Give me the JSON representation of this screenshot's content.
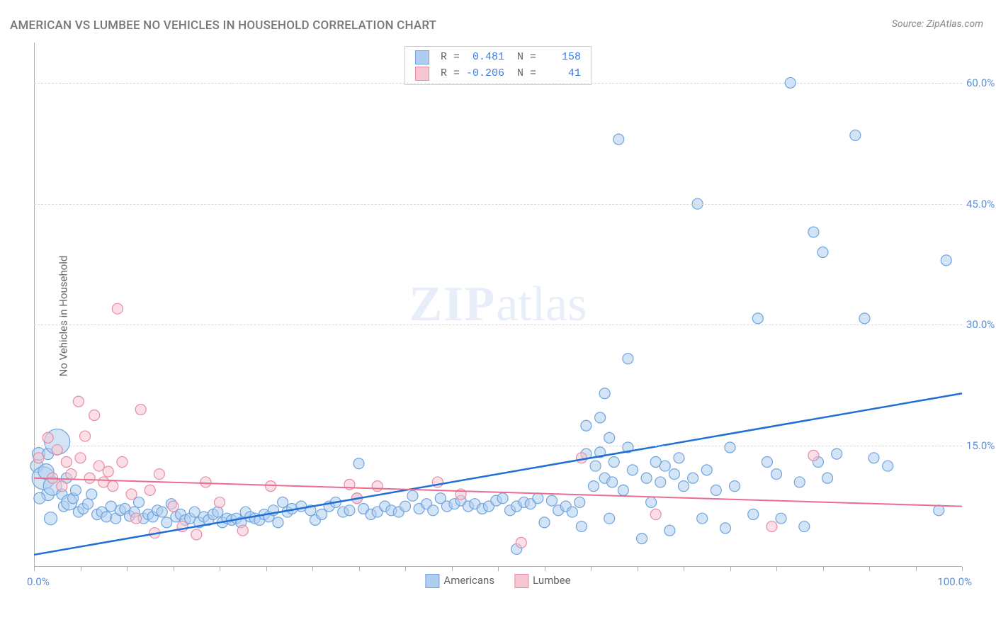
{
  "title": "AMERICAN VS LUMBEE NO VEHICLES IN HOUSEHOLD CORRELATION CHART",
  "source_label": "Source: ZipAtlas.com",
  "y_axis_label": "No Vehicles in Household",
  "watermark": {
    "bold": "ZIP",
    "rest": "atlas"
  },
  "chart": {
    "type": "scatter-with-regression",
    "xlim": [
      0,
      100
    ],
    "ylim": [
      0,
      65
    ],
    "x_tick_min": "0.0%",
    "x_tick_max": "100.0%",
    "x_minor_ticks": [
      0,
      5,
      10,
      15,
      20,
      25,
      30,
      35,
      40,
      45,
      50,
      55,
      60,
      65,
      70,
      75,
      80,
      85,
      90,
      95,
      100
    ],
    "y_gridlines": [
      15,
      30,
      45,
      60
    ],
    "y_tick_labels": [
      "15.0%",
      "30.0%",
      "45.0%",
      "60.0%"
    ],
    "background_color": "#ffffff",
    "grid_color": "#d8d8d8",
    "axis_color": "#b0b0b0",
    "tick_label_color": "#5b8fd6",
    "series": [
      {
        "name": "Americans",
        "legend_label": "Americans",
        "fill": "#aecdf0",
        "stroke": "#6fa3dd",
        "line_color": "#1f6fd6",
        "line_width": 2.5,
        "R": "0.481",
        "N": "158",
        "regression": {
          "x1": 0,
          "y1": 1.5,
          "x2": 100,
          "y2": 21.5
        },
        "default_r": 7.5,
        "points": [
          {
            "x": 0.3,
            "y": 12.5,
            "r": 9
          },
          {
            "x": 0.5,
            "y": 14.0,
            "r": 9
          },
          {
            "x": 1.0,
            "y": 11.0,
            "r": 16
          },
          {
            "x": 1.3,
            "y": 11.8,
            "r": 11
          },
          {
            "x": 1.5,
            "y": 9.0,
            "r": 9
          },
          {
            "x": 1.8,
            "y": 6.0,
            "r": 9
          },
          {
            "x": 0.6,
            "y": 8.5,
            "r": 8
          },
          {
            "x": 1.5,
            "y": 14.0,
            "r": 8
          },
          {
            "x": 2.0,
            "y": 10.0,
            "r": 13
          },
          {
            "x": 2.5,
            "y": 15.5,
            "r": 18
          },
          {
            "x": 3.0,
            "y": 9.0
          },
          {
            "x": 3.2,
            "y": 7.5
          },
          {
            "x": 3.5,
            "y": 11.0
          },
          {
            "x": 3.8,
            "y": 8.0,
            "r": 11
          },
          {
            "x": 4.2,
            "y": 8.5
          },
          {
            "x": 4.5,
            "y": 9.5
          },
          {
            "x": 4.8,
            "y": 6.8
          },
          {
            "x": 5.3,
            "y": 7.2
          },
          {
            "x": 5.8,
            "y": 7.8
          },
          {
            "x": 6.2,
            "y": 9.0
          },
          {
            "x": 6.8,
            "y": 6.5
          },
          {
            "x": 7.3,
            "y": 6.8
          },
          {
            "x": 7.8,
            "y": 6.2
          },
          {
            "x": 8.3,
            "y": 7.5
          },
          {
            "x": 8.8,
            "y": 6.0
          },
          {
            "x": 9.3,
            "y": 7.0
          },
          {
            "x": 9.8,
            "y": 7.2
          },
          {
            "x": 10.3,
            "y": 6.3
          },
          {
            "x": 10.8,
            "y": 6.8
          },
          {
            "x": 11.3,
            "y": 8.0
          },
          {
            "x": 11.8,
            "y": 6.0
          },
          {
            "x": 12.3,
            "y": 6.5
          },
          {
            "x": 12.8,
            "y": 6.2
          },
          {
            "x": 13.3,
            "y": 7.0
          },
          {
            "x": 13.8,
            "y": 6.8
          },
          {
            "x": 14.3,
            "y": 5.5
          },
          {
            "x": 14.8,
            "y": 7.8
          },
          {
            "x": 15.3,
            "y": 6.2
          },
          {
            "x": 15.8,
            "y": 6.5
          },
          {
            "x": 16.3,
            "y": 5.8
          },
          {
            "x": 16.8,
            "y": 6.0
          },
          {
            "x": 17.3,
            "y": 6.8
          },
          {
            "x": 17.8,
            "y": 5.5
          },
          {
            "x": 18.3,
            "y": 6.2
          },
          {
            "x": 18.8,
            "y": 5.8
          },
          {
            "x": 19.3,
            "y": 6.5
          },
          {
            "x": 19.8,
            "y": 6.8
          },
          {
            "x": 20.3,
            "y": 5.5
          },
          {
            "x": 20.8,
            "y": 6.0
          },
          {
            "x": 21.3,
            "y": 5.8
          },
          {
            "x": 21.8,
            "y": 6.0
          },
          {
            "x": 22.3,
            "y": 5.5
          },
          {
            "x": 22.8,
            "y": 6.8
          },
          {
            "x": 23.3,
            "y": 6.2
          },
          {
            "x": 23.8,
            "y": 6.0
          },
          {
            "x": 24.3,
            "y": 5.8
          },
          {
            "x": 24.8,
            "y": 6.5
          },
          {
            "x": 25.3,
            "y": 6.2
          },
          {
            "x": 25.8,
            "y": 7.0
          },
          {
            "x": 26.3,
            "y": 5.5
          },
          {
            "x": 26.8,
            "y": 8.0
          },
          {
            "x": 27.3,
            "y": 6.8
          },
          {
            "x": 27.8,
            "y": 7.2
          },
          {
            "x": 28.8,
            "y": 7.5
          },
          {
            "x": 29.8,
            "y": 7.0
          },
          {
            "x": 30.3,
            "y": 5.8
          },
          {
            "x": 31.0,
            "y": 6.5
          },
          {
            "x": 31.8,
            "y": 7.5
          },
          {
            "x": 32.5,
            "y": 8.0
          },
          {
            "x": 33.3,
            "y": 6.8
          },
          {
            "x": 34.0,
            "y": 7.0
          },
          {
            "x": 34.8,
            "y": 8.5
          },
          {
            "x": 35.0,
            "y": 12.8
          },
          {
            "x": 35.5,
            "y": 7.2
          },
          {
            "x": 36.3,
            "y": 6.5
          },
          {
            "x": 37.0,
            "y": 6.8
          },
          {
            "x": 37.8,
            "y": 7.5
          },
          {
            "x": 38.5,
            "y": 7.0
          },
          {
            "x": 39.3,
            "y": 6.8
          },
          {
            "x": 40.0,
            "y": 7.5
          },
          {
            "x": 40.8,
            "y": 8.8
          },
          {
            "x": 41.5,
            "y": 7.2
          },
          {
            "x": 42.3,
            "y": 7.8
          },
          {
            "x": 43.0,
            "y": 7.0
          },
          {
            "x": 43.8,
            "y": 8.5
          },
          {
            "x": 44.5,
            "y": 7.5
          },
          {
            "x": 45.3,
            "y": 7.8
          },
          {
            "x": 46.0,
            "y": 8.2
          },
          {
            "x": 46.8,
            "y": 7.5
          },
          {
            "x": 47.5,
            "y": 7.8
          },
          {
            "x": 48.3,
            "y": 7.2
          },
          {
            "x": 49.0,
            "y": 7.5
          },
          {
            "x": 49.8,
            "y": 8.2
          },
          {
            "x": 50.5,
            "y": 8.5
          },
          {
            "x": 51.3,
            "y": 7.0
          },
          {
            "x": 52.0,
            "y": 7.5
          },
          {
            "x": 52.8,
            "y": 8.0
          },
          {
            "x": 53.5,
            "y": 7.8
          },
          {
            "x": 54.3,
            "y": 8.5
          },
          {
            "x": 55.0,
            "y": 5.5
          },
          {
            "x": 55.8,
            "y": 8.2
          },
          {
            "x": 56.5,
            "y": 7.0
          },
          {
            "x": 57.3,
            "y": 7.5
          },
          {
            "x": 58.0,
            "y": 6.8
          },
          {
            "x": 58.8,
            "y": 8.0
          },
          {
            "x": 59.5,
            "y": 17.5
          },
          {
            "x": 59.5,
            "y": 14.0
          },
          {
            "x": 60.3,
            "y": 10.0
          },
          {
            "x": 60.5,
            "y": 12.5
          },
          {
            "x": 61.0,
            "y": 14.2
          },
          {
            "x": 61.0,
            "y": 18.5
          },
          {
            "x": 61.5,
            "y": 11.0
          },
          {
            "x": 61.5,
            "y": 21.5
          },
          {
            "x": 62.0,
            "y": 16.0
          },
          {
            "x": 62.3,
            "y": 10.5
          },
          {
            "x": 62.5,
            "y": 13.0
          },
          {
            "x": 63.0,
            "y": 53.0
          },
          {
            "x": 63.5,
            "y": 9.5
          },
          {
            "x": 64.0,
            "y": 14.8
          },
          {
            "x": 64.0,
            "y": 25.8
          },
          {
            "x": 64.5,
            "y": 12.0
          },
          {
            "x": 65.5,
            "y": 3.5
          },
          {
            "x": 66.0,
            "y": 11.0
          },
          {
            "x": 66.5,
            "y": 8.0
          },
          {
            "x": 67.0,
            "y": 13.0
          },
          {
            "x": 67.5,
            "y": 10.5
          },
          {
            "x": 68.0,
            "y": 12.5
          },
          {
            "x": 68.5,
            "y": 4.5
          },
          {
            "x": 69.0,
            "y": 11.5
          },
          {
            "x": 69.5,
            "y": 13.5
          },
          {
            "x": 70.0,
            "y": 10.0
          },
          {
            "x": 71.0,
            "y": 11.0
          },
          {
            "x": 71.5,
            "y": 45.0
          },
          {
            "x": 72.0,
            "y": 6.0
          },
          {
            "x": 72.5,
            "y": 12.0
          },
          {
            "x": 73.5,
            "y": 9.5
          },
          {
            "x": 74.5,
            "y": 4.8
          },
          {
            "x": 75.0,
            "y": 14.8
          },
          {
            "x": 75.5,
            "y": 10.0
          },
          {
            "x": 77.5,
            "y": 6.5
          },
          {
            "x": 78.0,
            "y": 30.8
          },
          {
            "x": 79.0,
            "y": 13.0
          },
          {
            "x": 80.0,
            "y": 11.5
          },
          {
            "x": 80.5,
            "y": 6.0
          },
          {
            "x": 81.5,
            "y": 60.0
          },
          {
            "x": 82.5,
            "y": 10.5
          },
          {
            "x": 83.0,
            "y": 5.0
          },
          {
            "x": 84.0,
            "y": 41.5
          },
          {
            "x": 84.5,
            "y": 13.0
          },
          {
            "x": 85.0,
            "y": 39.0
          },
          {
            "x": 85.5,
            "y": 11.0
          },
          {
            "x": 86.5,
            "y": 14.0
          },
          {
            "x": 88.5,
            "y": 53.5
          },
          {
            "x": 89.5,
            "y": 30.8
          },
          {
            "x": 90.5,
            "y": 13.5
          },
          {
            "x": 92.0,
            "y": 12.5
          },
          {
            "x": 97.5,
            "y": 7.0
          },
          {
            "x": 98.3,
            "y": 38.0
          },
          {
            "x": 52.0,
            "y": 2.2
          },
          {
            "x": 59.0,
            "y": 5.0
          },
          {
            "x": 62.0,
            "y": 6.0
          }
        ]
      },
      {
        "name": "Lumbee",
        "legend_label": "Lumbee",
        "fill": "#f6c6d2",
        "stroke": "#e88ba4",
        "line_color": "#ea6c8f",
        "line_width": 2,
        "R": "-0.206",
        "N": "41",
        "regression": {
          "x1": 0,
          "y1": 11.0,
          "x2": 100,
          "y2": 7.5
        },
        "default_r": 7.5,
        "points": [
          {
            "x": 0.5,
            "y": 13.5
          },
          {
            "x": 1.5,
            "y": 16.0
          },
          {
            "x": 2.0,
            "y": 11.0
          },
          {
            "x": 2.5,
            "y": 14.5
          },
          {
            "x": 3.0,
            "y": 10.0
          },
          {
            "x": 3.5,
            "y": 13.0
          },
          {
            "x": 4.0,
            "y": 11.5
          },
          {
            "x": 4.8,
            "y": 20.5
          },
          {
            "x": 5.0,
            "y": 13.5
          },
          {
            "x": 5.5,
            "y": 16.2
          },
          {
            "x": 6.0,
            "y": 11.0
          },
          {
            "x": 6.5,
            "y": 18.8
          },
          {
            "x": 7.0,
            "y": 12.5
          },
          {
            "x": 7.5,
            "y": 10.5
          },
          {
            "x": 8.0,
            "y": 11.8
          },
          {
            "x": 8.5,
            "y": 10.0
          },
          {
            "x": 9.0,
            "y": 32.0
          },
          {
            "x": 9.5,
            "y": 13.0
          },
          {
            "x": 10.5,
            "y": 9.0
          },
          {
            "x": 11.0,
            "y": 6.0
          },
          {
            "x": 11.5,
            "y": 19.5
          },
          {
            "x": 12.5,
            "y": 9.5
          },
          {
            "x": 13.0,
            "y": 4.2
          },
          {
            "x": 13.5,
            "y": 11.5
          },
          {
            "x": 15.0,
            "y": 7.5
          },
          {
            "x": 16.0,
            "y": 5.0
          },
          {
            "x": 17.5,
            "y": 4.0
          },
          {
            "x": 18.5,
            "y": 10.5
          },
          {
            "x": 20.0,
            "y": 8.0
          },
          {
            "x": 22.5,
            "y": 4.5
          },
          {
            "x": 25.5,
            "y": 10.0
          },
          {
            "x": 34.0,
            "y": 10.2
          },
          {
            "x": 34.8,
            "y": 8.5
          },
          {
            "x": 37.0,
            "y": 10.0
          },
          {
            "x": 43.5,
            "y": 10.5
          },
          {
            "x": 46.0,
            "y": 9.0
          },
          {
            "x": 52.5,
            "y": 3.0
          },
          {
            "x": 59.0,
            "y": 13.5
          },
          {
            "x": 67.0,
            "y": 6.5
          },
          {
            "x": 79.5,
            "y": 5.0
          },
          {
            "x": 84.0,
            "y": 13.8
          }
        ]
      }
    ],
    "bottom_legend": [
      {
        "label": "Americans",
        "fill": "#aecdf0",
        "stroke": "#6fa3dd"
      },
      {
        "label": "Lumbee",
        "fill": "#f6c6d2",
        "stroke": "#e88ba4"
      }
    ]
  }
}
